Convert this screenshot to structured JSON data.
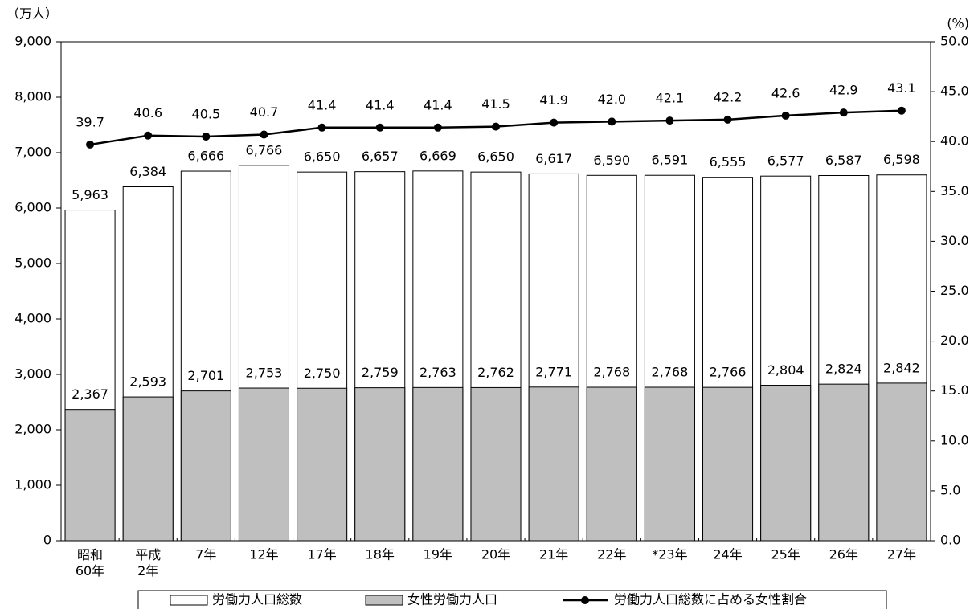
{
  "chart_data": {
    "type": "bar-line",
    "y_unit": "（万人）",
    "y2_unit": "(%)",
    "categories": [
      "昭和\n60年",
      "平成\n2年",
      "7年",
      "12年",
      "17年",
      "18年",
      "19年",
      "20年",
      "21年",
      "22年",
      "*23年",
      "24年",
      "25年",
      "26年",
      "27年"
    ],
    "ylim": [
      0,
      9000
    ],
    "yticks": [
      {
        "value": 0,
        "label": "0"
      },
      {
        "value": 1000,
        "label": "1,000"
      },
      {
        "value": 2000,
        "label": "2,000"
      },
      {
        "value": 3000,
        "label": "3,000"
      },
      {
        "value": 4000,
        "label": "4,000"
      },
      {
        "value": 5000,
        "label": "5,000"
      },
      {
        "value": 6000,
        "label": "6,000"
      },
      {
        "value": 7000,
        "label": "7,000"
      },
      {
        "value": 8000,
        "label": "8,000"
      },
      {
        "value": 9000,
        "label": "9,000"
      }
    ],
    "y2lim": [
      0,
      50
    ],
    "y2ticks": [
      {
        "value": 0,
        "label": "0.0"
      },
      {
        "value": 5,
        "label": "5.0"
      },
      {
        "value": 10,
        "label": "10.0"
      },
      {
        "value": 15,
        "label": "15.0"
      },
      {
        "value": 20,
        "label": "20.0"
      },
      {
        "value": 25,
        "label": "25.0"
      },
      {
        "value": 30,
        "label": "30.0"
      },
      {
        "value": 35,
        "label": "35.0"
      },
      {
        "value": 40,
        "label": "40.0"
      },
      {
        "value": 45,
        "label": "45.0"
      },
      {
        "value": 50,
        "label": "50.0"
      }
    ],
    "series": [
      {
        "name": "労働力人口総数",
        "type": "bar",
        "color": "#ffffff",
        "values": [
          5963,
          6384,
          6666,
          6766,
          6650,
          6657,
          6669,
          6650,
          6617,
          6590,
          6591,
          6555,
          6577,
          6587,
          6598
        ],
        "value_labels": [
          "5,963",
          "6,384",
          "6,666",
          "6,766",
          "6,650",
          "6,657",
          "6,669",
          "6,650",
          "6,617",
          "6,590",
          "6,591",
          "6,555",
          "6,577",
          "6,587",
          "6,598"
        ]
      },
      {
        "name": "女性労働力人口",
        "type": "bar",
        "color": "#bfbfbf",
        "values": [
          2367,
          2593,
          2701,
          2753,
          2750,
          2759,
          2763,
          2762,
          2771,
          2768,
          2768,
          2766,
          2804,
          2824,
          2842
        ],
        "value_labels": [
          "2,367",
          "2,593",
          "2,701",
          "2,753",
          "2,750",
          "2,759",
          "2,763",
          "2,762",
          "2,771",
          "2,768",
          "2,768",
          "2,766",
          "2,804",
          "2,824",
          "2,842"
        ]
      },
      {
        "name": "労働力人口総数に占める女性割合",
        "type": "line",
        "axis": "y2",
        "color": "#000000",
        "values": [
          39.7,
          40.6,
          40.5,
          40.7,
          41.4,
          41.4,
          41.4,
          41.5,
          41.9,
          42.0,
          42.1,
          42.2,
          42.6,
          42.9,
          43.1
        ],
        "value_labels": [
          "39.7",
          "40.6",
          "40.5",
          "40.7",
          "41.4",
          "41.4",
          "41.4",
          "41.5",
          "41.9",
          "42.0",
          "42.1",
          "42.2",
          "42.6",
          "42.9",
          "43.1"
        ]
      }
    ]
  }
}
